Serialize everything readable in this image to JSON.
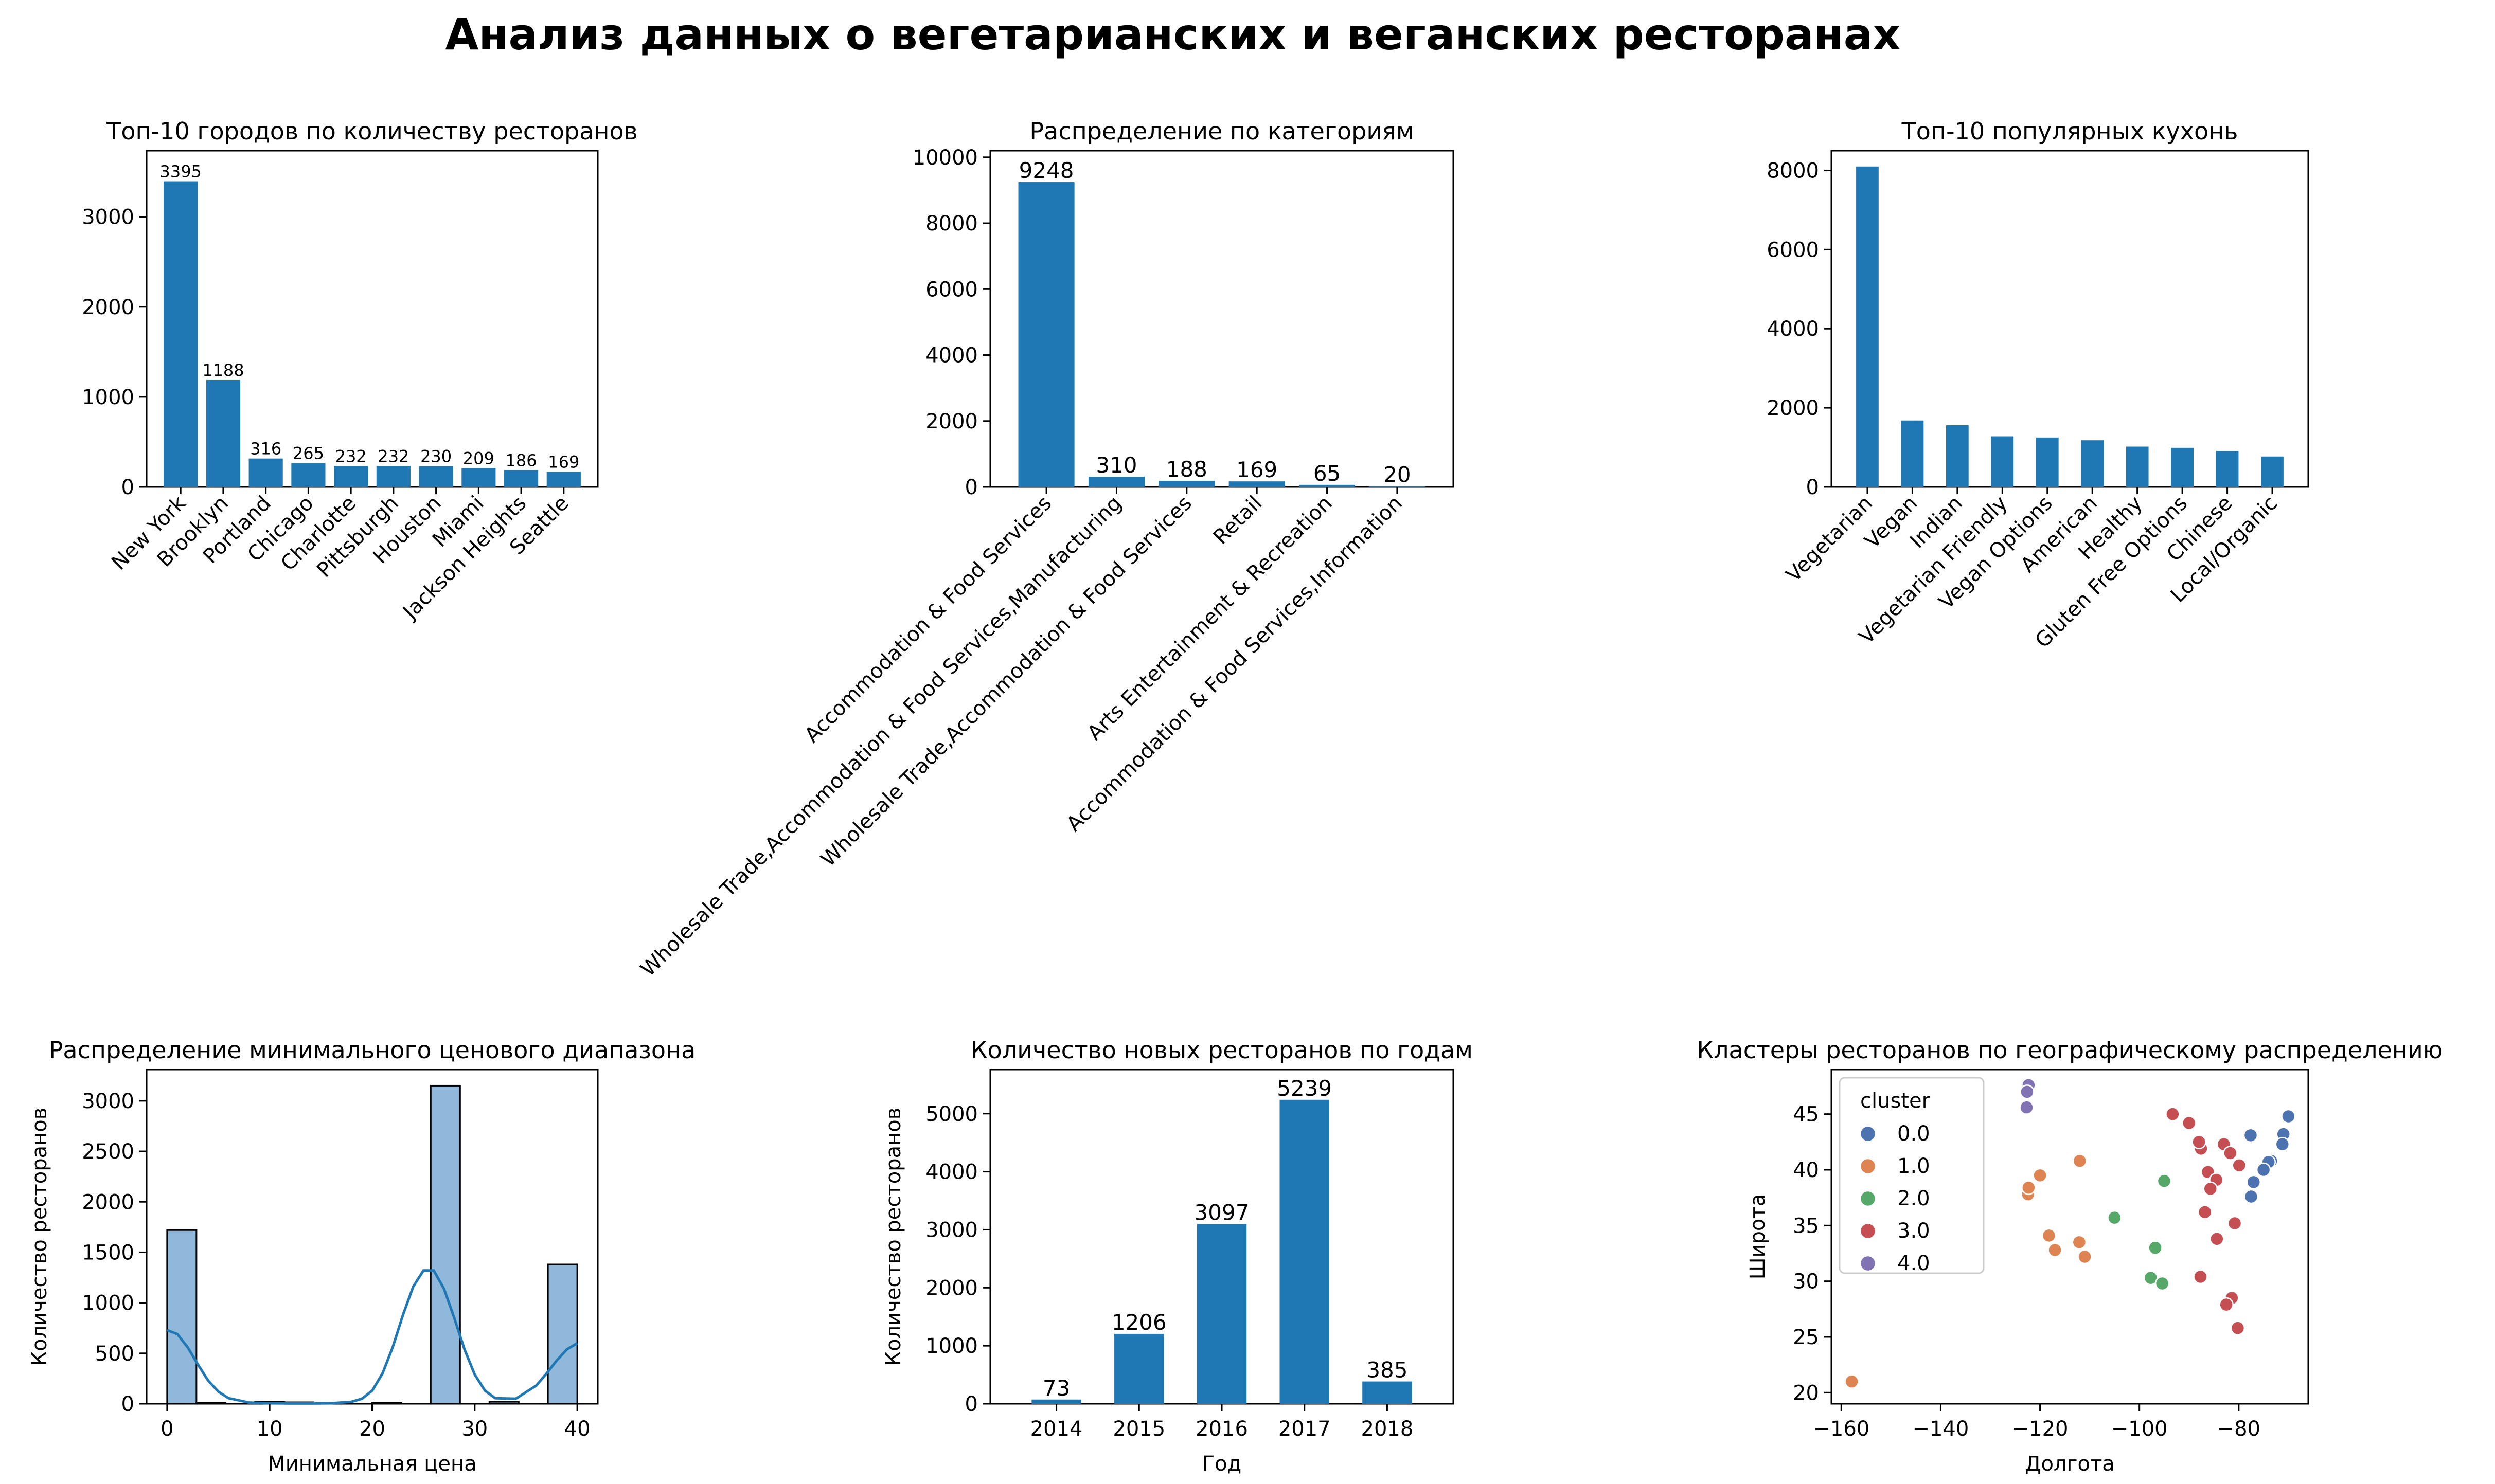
{
  "figure": {
    "suptitle": "Анализ данных о вегетарианских и веганских ресторанах",
    "bar_color": "#1f77b4"
  },
  "chart_data": [
    {
      "type": "bar",
      "title": "Топ-10 городов по количеству ресторанов",
      "xlabel": "",
      "ylabel": "",
      "categories": [
        "New York",
        "Brooklyn",
        "Portland",
        "Chicago",
        "Charlotte",
        "Pittsburgh",
        "Houston",
        "Miami",
        "Jackson Heights",
        "Seattle"
      ],
      "values": [
        3395,
        1188,
        316,
        265,
        232,
        232,
        230,
        209,
        186,
        169
      ],
      "data_labels": [
        "3395",
        "1188",
        "316",
        "265",
        "232",
        "232",
        "230",
        "209",
        "186",
        "169"
      ],
      "ylim": [
        0,
        3735
      ],
      "yticks": [
        0,
        1000,
        2000,
        3000
      ],
      "ytick_labels": [
        "0",
        "1000",
        "2000",
        "3000"
      ],
      "grid": false
    },
    {
      "type": "bar",
      "title": "Распределение по категориям",
      "xlabel": "",
      "ylabel": "",
      "categories": [
        "Accommodation & Food Services",
        "Wholesale Trade,Accommodation & Food Services,Manufacturing",
        "Wholesale Trade,Accommodation & Food Services",
        "Retail",
        "Arts Entertainment & Recreation",
        "Accommodation & Food Services,Information"
      ],
      "values": [
        9248,
        310,
        188,
        169,
        65,
        20
      ],
      "data_labels": [
        "9248",
        "310",
        "188",
        "169",
        "65",
        "20"
      ],
      "ylim": [
        0,
        10200
      ],
      "yticks": [
        0,
        2000,
        4000,
        6000,
        8000,
        10000
      ],
      "ytick_labels": [
        "0",
        "2000",
        "4000",
        "6000",
        "8000",
        "10000"
      ],
      "grid": false
    },
    {
      "type": "bar",
      "title": "Топ-10 популярных кухонь",
      "xlabel": "",
      "ylabel": "",
      "categories": [
        "Vegetarian",
        "Vegan",
        "Indian",
        "Vegetarian Friendly",
        "Vegan Options",
        "American",
        "Healthy",
        "Gluten Free Options",
        "Chinese",
        "Local/Organic"
      ],
      "values": [
        8100,
        1680,
        1560,
        1280,
        1250,
        1180,
        1020,
        990,
        910,
        770
      ],
      "ylim": [
        0,
        8500
      ],
      "yticks": [
        0,
        2000,
        4000,
        6000,
        8000
      ],
      "ytick_labels": [
        "0",
        "2000",
        "4000",
        "6000",
        "8000"
      ],
      "grid": false
    },
    {
      "type": "bar",
      "title": "Распределение минимального ценового диапазона",
      "xlabel": "Минимальная цена",
      "ylabel": "Количество ресторанов",
      "bins": [
        {
          "x0": 0,
          "x1": 2.86,
          "count": 1720
        },
        {
          "x0": 2.86,
          "x1": 5.71,
          "count": 8
        },
        {
          "x0": 5.71,
          "x1": 8.57,
          "count": 0
        },
        {
          "x0": 8.57,
          "x1": 11.43,
          "count": 18
        },
        {
          "x0": 11.43,
          "x1": 14.29,
          "count": 15
        },
        {
          "x0": 14.29,
          "x1": 17.14,
          "count": 0
        },
        {
          "x0": 17.14,
          "x1": 20.0,
          "count": 0
        },
        {
          "x0": 20.0,
          "x1": 22.86,
          "count": 8
        },
        {
          "x0": 22.86,
          "x1": 25.71,
          "count": 0
        },
        {
          "x0": 25.71,
          "x1": 28.57,
          "count": 3150
        },
        {
          "x0": 28.57,
          "x1": 31.43,
          "count": 0
        },
        {
          "x0": 31.43,
          "x1": 34.29,
          "count": 20
        },
        {
          "x0": 34.29,
          "x1": 37.14,
          "count": 0
        },
        {
          "x0": 37.14,
          "x1": 40.0,
          "count": 1380
        }
      ],
      "kde": {
        "x": [
          0,
          1,
          2,
          3,
          4,
          5,
          6,
          8,
          10,
          12,
          14,
          16,
          18,
          19,
          20,
          21,
          22,
          23,
          24,
          25,
          26,
          27,
          28,
          29,
          30,
          31,
          32,
          34,
          36,
          37,
          38,
          39,
          40
        ],
        "y": [
          730,
          690,
          560,
          390,
          230,
          120,
          55,
          12,
          5,
          3,
          3,
          5,
          20,
          50,
          130,
          300,
          560,
          880,
          1160,
          1320,
          1320,
          1140,
          850,
          540,
          290,
          130,
          55,
          50,
          180,
          300,
          430,
          540,
          600
        ]
      },
      "xlim": [
        -2,
        42
      ],
      "xticks": [
        0,
        10,
        20,
        30,
        40
      ],
      "xtick_labels": [
        "0",
        "10",
        "20",
        "30",
        "40"
      ],
      "ylim": [
        0,
        3310
      ],
      "yticks": [
        0,
        500,
        1000,
        1500,
        2000,
        2500,
        3000
      ],
      "ytick_labels": [
        "0",
        "500",
        "1000",
        "1500",
        "2000",
        "2500",
        "3000"
      ],
      "hist_color": "#8fb8da",
      "kde_color": "#1f77b4",
      "grid": false
    },
    {
      "type": "bar",
      "title": "Количество новых ресторанов по годам",
      "xlabel": "Год",
      "ylabel": "Количество ресторанов",
      "categories": [
        "2014",
        "2015",
        "2016",
        "2017",
        "2018"
      ],
      "values": [
        73,
        1206,
        3097,
        5239,
        385
      ],
      "data_labels": [
        "73",
        "1206",
        "3097",
        "5239",
        "385"
      ],
      "ylim": [
        0,
        5760
      ],
      "yticks": [
        0,
        1000,
        2000,
        3000,
        4000,
        5000
      ],
      "ytick_labels": [
        "0",
        "1000",
        "2000",
        "3000",
        "4000",
        "5000"
      ],
      "grid": false
    },
    {
      "type": "scatter",
      "title": "Кластеры ресторанов по географическому распределению",
      "xlabel": "Долгота",
      "ylabel": "Широта",
      "xlim": [
        -162,
        -66
      ],
      "ylim": [
        19,
        49
      ],
      "xticks": [
        -160,
        -140,
        -120,
        -100,
        -80
      ],
      "xtick_labels": [
        "−160",
        "−140",
        "−120",
        "−100",
        "−80"
      ],
      "yticks": [
        20,
        25,
        30,
        35,
        40,
        45
      ],
      "ytick_labels": [
        "20",
        "25",
        "30",
        "35",
        "40",
        "45"
      ],
      "legend": {
        "title": "cluster",
        "placement": "top-left"
      },
      "grid": false,
      "series": [
        {
          "name": "0.0",
          "color": "#4c72b0",
          "points": [
            [
              -70,
              44.8
            ],
            [
              -71,
              43.2
            ],
            [
              -71.2,
              42.3
            ],
            [
              -73.5,
              40.8
            ],
            [
              -74,
              40.7
            ],
            [
              -75,
              40.0
            ],
            [
              -77,
              38.9
            ],
            [
              -77.5,
              37.6
            ],
            [
              -77.6,
              43.1
            ]
          ]
        },
        {
          "name": "1.0",
          "color": "#dd8452",
          "points": [
            [
              -122.4,
              37.8
            ],
            [
              -122.3,
              38.4
            ],
            [
              -122.7,
              45.5
            ],
            [
              -122.3,
              47.6
            ],
            [
              -120,
              39.5
            ],
            [
              -112,
              40.8
            ],
            [
              -118.2,
              34.1
            ],
            [
              -117,
              32.8
            ],
            [
              -112.1,
              33.5
            ],
            [
              -111,
              32.2
            ],
            [
              -157.9,
              21.0
            ]
          ]
        },
        {
          "name": "2.0",
          "color": "#55a868",
          "points": [
            [
              -97.7,
              30.3
            ],
            [
              -96.8,
              33.0
            ],
            [
              -95.4,
              29.8
            ],
            [
              -95,
              39.0
            ],
            [
              -105,
              35.7
            ]
          ]
        },
        {
          "name": "3.0",
          "color": "#c44e52",
          "points": [
            [
              -93.3,
              45.0
            ],
            [
              -87.6,
              41.9
            ],
            [
              -86.2,
              39.8
            ],
            [
              -84.5,
              39.1
            ],
            [
              -83,
              42.3
            ],
            [
              -85.7,
              38.3
            ],
            [
              -90,
              44.2
            ],
            [
              -86.8,
              36.2
            ],
            [
              -84.4,
              33.8
            ],
            [
              -81.7,
              41.5
            ],
            [
              -80.8,
              35.2
            ],
            [
              -80.2,
              25.8
            ],
            [
              -81.4,
              28.5
            ],
            [
              -87.7,
              30.4
            ],
            [
              -82.5,
              27.9
            ],
            [
              -79.9,
              40.4
            ],
            [
              -88,
              42.5
            ]
          ]
        },
        {
          "name": "4.0",
          "color": "#8172b3",
          "points": [
            [
              -122.3,
              47.6
            ],
            [
              -122.6,
              47.0
            ],
            [
              -122.7,
              45.6
            ]
          ]
        }
      ]
    }
  ]
}
